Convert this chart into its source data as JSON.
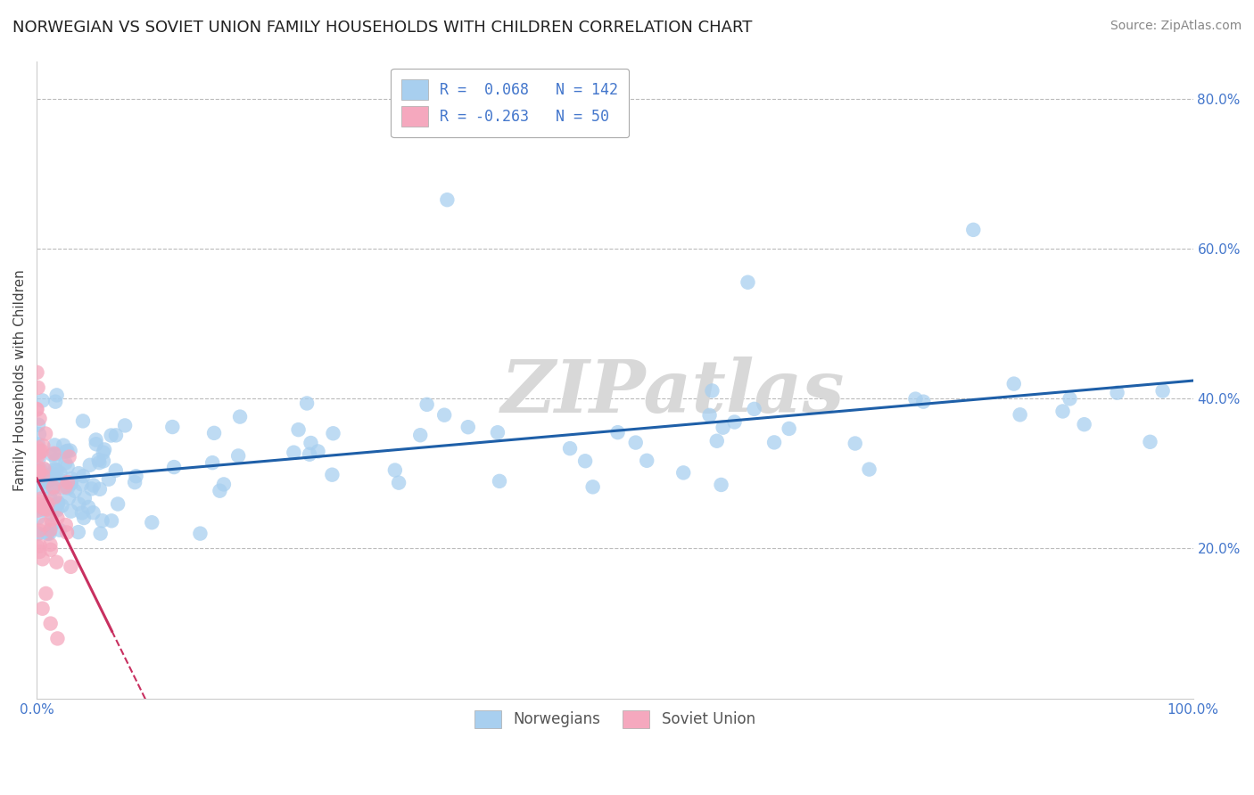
{
  "title": "NORWEGIAN VS SOVIET UNION FAMILY HOUSEHOLDS WITH CHILDREN CORRELATION CHART",
  "source": "Source: ZipAtlas.com",
  "ylabel": "Family Households with Children",
  "r_norwegian": 0.068,
  "n_norwegian": 142,
  "r_soviet": -0.263,
  "n_soviet": 50,
  "legend_bottom": [
    "Norwegians",
    "Soviet Union"
  ],
  "xlim": [
    0.0,
    1.0
  ],
  "ylim": [
    0.0,
    0.85
  ],
  "ytick_positions": [
    0.2,
    0.4,
    0.6,
    0.8
  ],
  "ytick_labels_right": [
    "20.0%",
    "40.0%",
    "60.0%",
    "80.0%"
  ],
  "xtick_positions": [
    0.0,
    1.0
  ],
  "xtick_labels": [
    "0.0%",
    "100.0%"
  ],
  "hgrid_values": [
    0.2,
    0.4,
    0.6,
    0.8
  ],
  "color_norwegian": "#A8CFEF",
  "color_norwegian_line": "#1E5FA8",
  "color_soviet": "#F5A8BE",
  "color_soviet_line": "#C83060",
  "background_color": "#FFFFFF",
  "watermark_text": "ZIPatlas",
  "title_fontsize": 13,
  "source_fontsize": 10,
  "legend_fontsize": 12,
  "axis_label_fontsize": 11,
  "tick_fontsize": 11,
  "tick_color": "#4477CC"
}
